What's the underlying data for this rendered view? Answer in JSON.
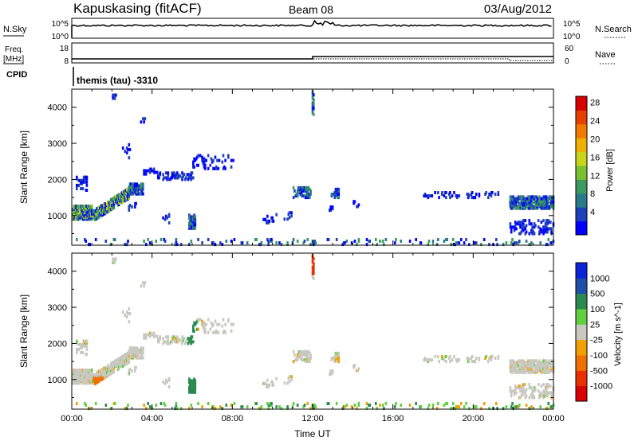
{
  "header": {
    "station": "Kapuskasing (fitACF)",
    "beam": "Beam 08",
    "date": "03/Aug/2012"
  },
  "top_panels": {
    "nsky_label": "N.Sky",
    "nsky_ticks": [
      "10^5",
      "10^0"
    ],
    "nsearch_label": "N.Search",
    "nsearch_ticks": [
      "10^5",
      "10^0"
    ],
    "freq_label": "Freq.",
    "freq_unit": "[MHz]",
    "freq_ticks": [
      "18",
      "8"
    ],
    "nave_label": "Nave",
    "nave_ticks": [
      "60",
      "0"
    ],
    "cpid_label": "CPID",
    "cpid_text": "themis (tau) -3310"
  },
  "chart_data": [
    {
      "type": "heatmap",
      "name": "power-panel",
      "title": "",
      "xlabel": "",
      "ylabel": "Slant Range [km]",
      "xlim": [
        "00:00",
        "24:00"
      ],
      "ylim": [
        180,
        4500
      ],
      "x_ticks": [
        "00:00",
        "04:00",
        "08:00",
        "12:00",
        "16:00",
        "20:00",
        "00:00"
      ],
      "y_ticks": [
        "1000",
        "2000",
        "3000",
        "4000"
      ],
      "colorbar": {
        "label": "Power [dB]",
        "ticks": [
          "4",
          "8",
          "12",
          "16",
          "20",
          "24",
          "28"
        ],
        "range": [
          0,
          30
        ],
        "colors": [
          "#0000ff",
          "#1e40b8",
          "#2a7a8a",
          "#3a9a60",
          "#7ac030",
          "#c8d41a",
          "#f0b000",
          "#f07a00",
          "#e84000",
          "#d80000"
        ]
      },
      "features": [
        {
          "start_hr": 0.0,
          "end_hr": 1.5,
          "range_km": [
            900,
            1300
          ],
          "level": "high"
        },
        {
          "start_hr": 1.5,
          "end_hr": 3.0,
          "range_km": [
            1200,
            1900
          ],
          "level": "high"
        },
        {
          "start_hr": 4.0,
          "end_hr": 5.5,
          "range_km": [
            2000,
            2200
          ],
          "level": "low"
        },
        {
          "start_hr": 5.8,
          "end_hr": 6.2,
          "range_km": [
            700,
            1000
          ],
          "level": "medium"
        },
        {
          "start_hr": 11.3,
          "end_hr": 12.0,
          "range_km": [
            1500,
            1800
          ],
          "level": "medium"
        },
        {
          "start_hr": 21.8,
          "end_hr": 24.0,
          "range_km": [
            1200,
            1500
          ],
          "level": "medium"
        },
        {
          "start_hr": 21.8,
          "end_hr": 24.0,
          "range_km": [
            500,
            900
          ],
          "level": "low"
        }
      ]
    },
    {
      "type": "heatmap",
      "name": "velocity-panel",
      "title": "",
      "xlabel": "Time UT",
      "ylabel": "Slant Range [km]",
      "xlim": [
        "00:00",
        "24:00"
      ],
      "ylim": [
        180,
        4500
      ],
      "x_ticks": [
        "00:00",
        "04:00",
        "08:00",
        "12:00",
        "16:00",
        "20:00",
        "00:00"
      ],
      "y_ticks": [
        "1000",
        "2000",
        "3000",
        "4000"
      ],
      "colorbar": {
        "label": "Velocity [m s^-1]",
        "ticks": [
          "1000",
          "500",
          "100",
          "25",
          "-25",
          "-100",
          "-500",
          "-1000"
        ],
        "range": [
          -1200,
          1200
        ],
        "colors": [
          "#0a22d8",
          "#1f4fa8",
          "#2a8a50",
          "#60d040",
          "#c8c8c0",
          "#f0a000",
          "#f07000",
          "#e83000",
          "#d80000"
        ]
      }
    }
  ]
}
